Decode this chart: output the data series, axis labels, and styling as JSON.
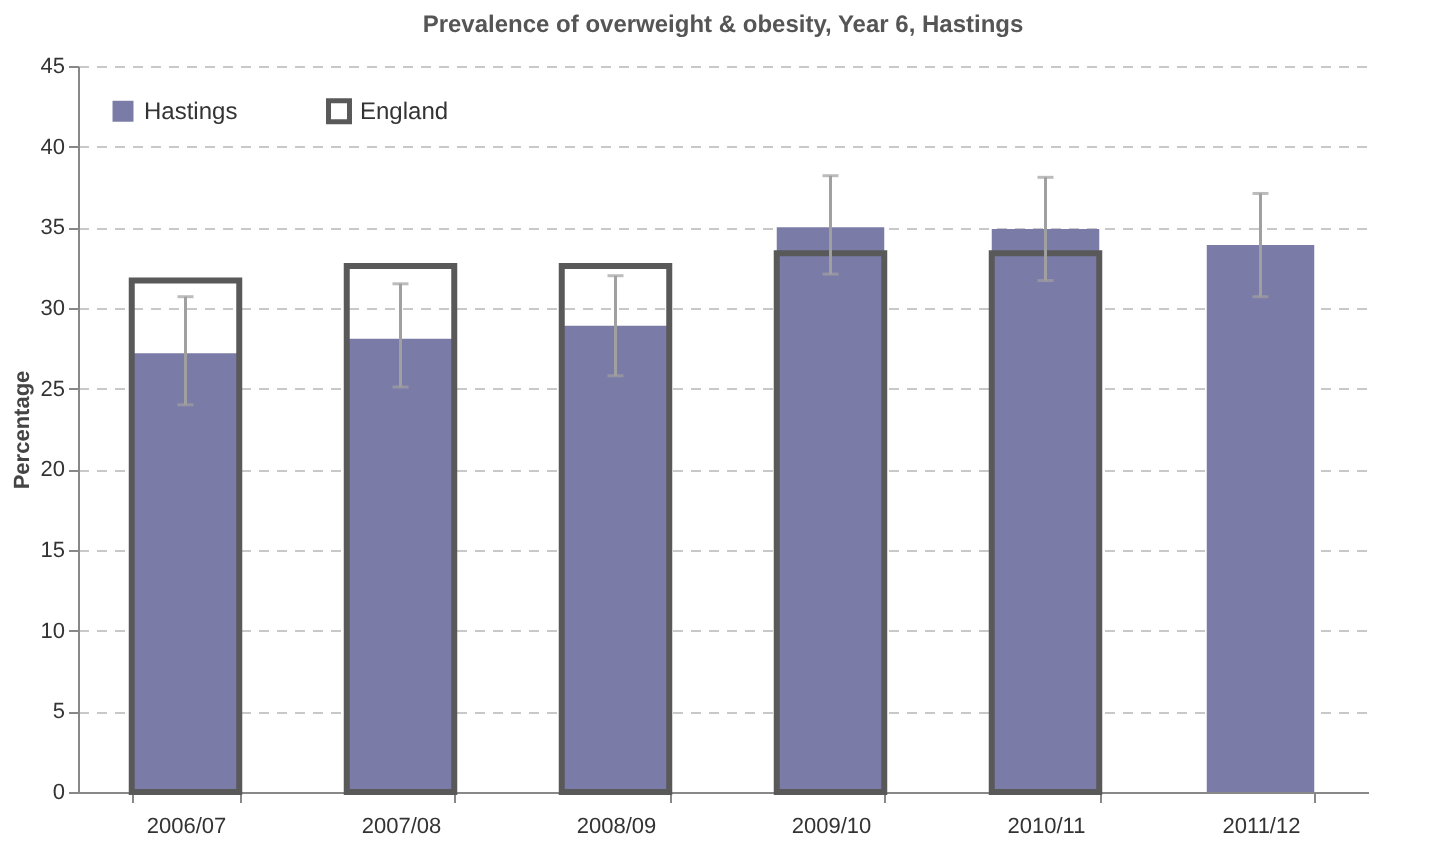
{
  "chart_data": {
    "type": "bar",
    "title": "Prevalence of overweight & obesity, Year 6, Hastings",
    "ylabel": "Percentage",
    "categories": [
      "2006/07",
      "2007/08",
      "2008/09",
      "2009/10",
      "2010/11",
      "2011/12"
    ],
    "series": [
      {
        "name": "Hastings",
        "color": "#7b7ba8",
        "values": [
          27.2,
          28.1,
          28.9,
          35.0,
          34.9,
          33.9
        ],
        "errors": [
          [
            24.0,
            30.7
          ],
          [
            25.1,
            31.5
          ],
          [
            25.8,
            32.0
          ],
          [
            32.1,
            38.2
          ],
          [
            31.7,
            38.1
          ],
          [
            30.7,
            37.1
          ]
        ]
      },
      {
        "name": "England",
        "color": "#595959",
        "values": [
          31.7,
          32.6,
          32.6,
          33.4,
          33.4,
          null
        ]
      }
    ],
    "ylim": [
      0,
      45
    ],
    "yticks": [
      0,
      5,
      10,
      15,
      20,
      25,
      30,
      35,
      40,
      45
    ],
    "grid": "y",
    "legend": "top left"
  }
}
